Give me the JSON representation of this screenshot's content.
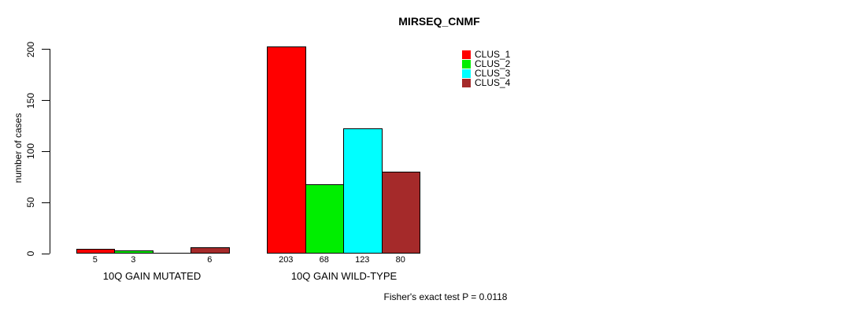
{
  "title": "MIRSEQ_CNMF",
  "footer": "Fisher's exact test P = 0.0118",
  "chart_data": {
    "type": "bar",
    "title": "MIRSEQ_CNMF",
    "xlabel": "",
    "ylabel": "number of cases",
    "ylim": [
      0,
      200
    ],
    "yticks": [
      0,
      50,
      100,
      150,
      200
    ],
    "grid": false,
    "legend_position": "top-right-inside",
    "categories": [
      "10Q GAIN MUTATED",
      "10Q GAIN WILD-TYPE"
    ],
    "series": [
      {
        "name": "CLUS_1",
        "color": "#ff0000",
        "values": [
          5,
          203
        ]
      },
      {
        "name": "CLUS_2",
        "color": "#00ee00",
        "values": [
          3,
          68
        ]
      },
      {
        "name": "CLUS_3",
        "color": "#00ffff",
        "values": [
          0,
          123
        ]
      },
      {
        "name": "CLUS_4",
        "color": "#a52a2a",
        "values": [
          6,
          80
        ]
      }
    ],
    "bar_count_labels": [
      [
        "5",
        "3",
        "",
        "6"
      ],
      [
        "203",
        "68",
        "123",
        "80"
      ]
    ],
    "annotation": "Fisher's exact test P = 0.0118"
  }
}
